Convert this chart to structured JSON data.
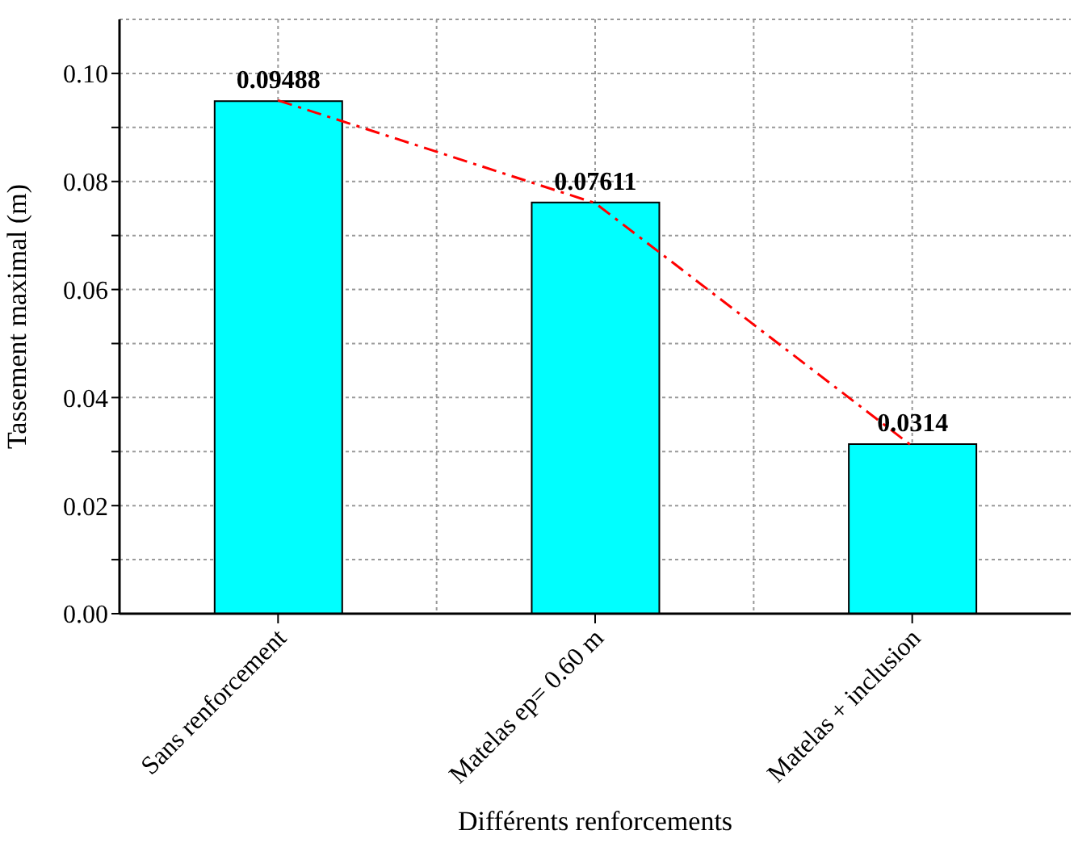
{
  "chart_data": {
    "type": "bar",
    "xlabel": "Différents renforcements",
    "ylabel": "Tassement maximal (m)",
    "categories": [
      "Sans renforcement",
      "Matelas  ep= 0.60 m",
      "Matelas + inclusion"
    ],
    "series": [
      {
        "color": "#00ffff",
        "values": [
          0.09488,
          0.07611,
          0.0314
        ],
        "data_labels": true
      },
      {
        "type": "line",
        "color": "#ff0000",
        "values": [
          0.095,
          0.076,
          0.031
        ],
        "line_style": "dashed",
        "marker": "none"
      }
    ],
    "ylim": [
      0,
      0.11
    ],
    "yticks": [
      {
        "value": 0,
        "label": "0.00"
      },
      {
        "value": 0.01,
        "label": null
      },
      {
        "value": 0.02,
        "label": "0.02"
      },
      {
        "value": 0.03,
        "label": null
      },
      {
        "value": 0.04,
        "label": "0.04"
      },
      {
        "value": 0.05,
        "label": null
      },
      {
        "value": 0.06,
        "label": "0.06"
      },
      {
        "value": 0.07,
        "label": null
      },
      {
        "value": 0.08,
        "label": "0.08"
      },
      {
        "value": 0.09,
        "label": null
      },
      {
        "value": 0.1,
        "label": "0.10"
      }
    ],
    "grid": true
  }
}
